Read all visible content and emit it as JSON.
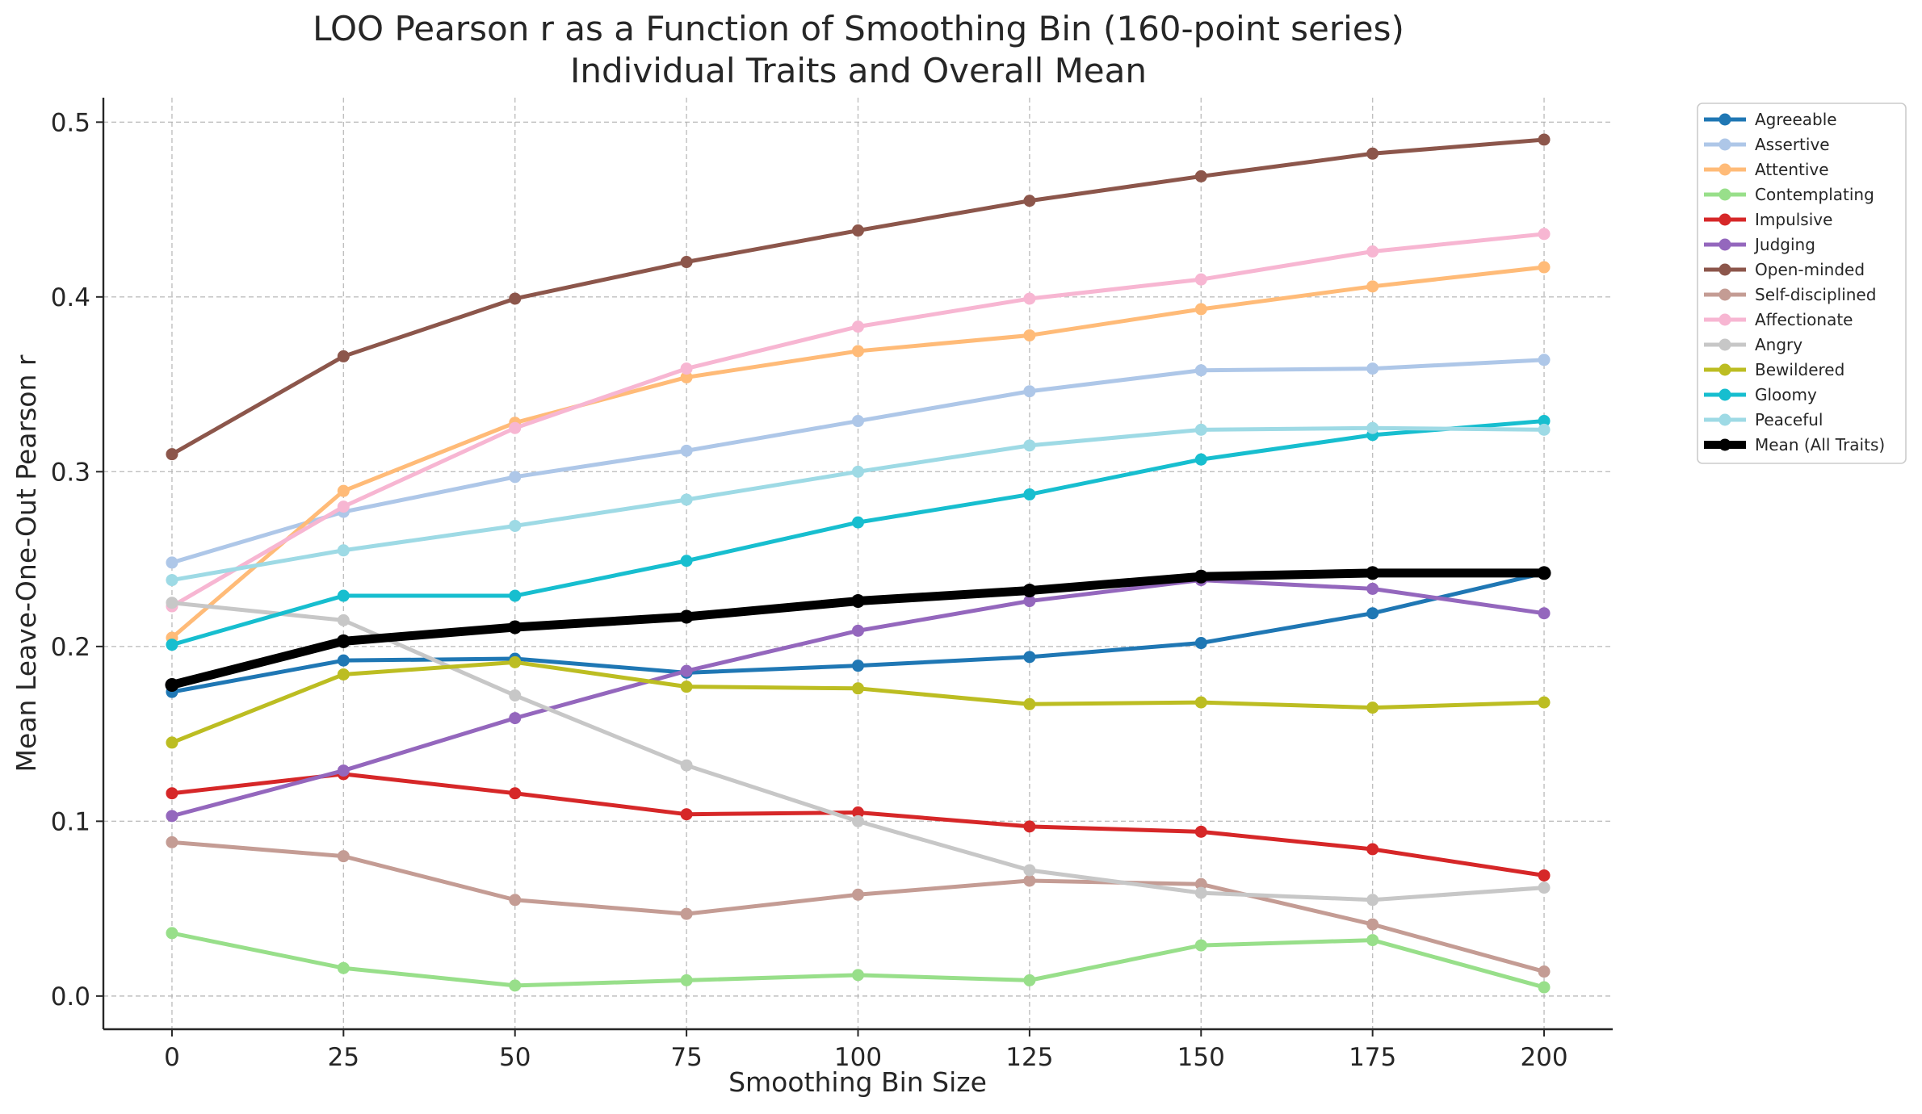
{
  "chart_data": {
    "type": "line",
    "title": "LOO Pearson r as a Function of Smoothing Bin (160-point series)",
    "subtitle": "Individual Traits and Overall Mean",
    "xlabel": "Smoothing Bin Size",
    "ylabel": "Mean Leave-One-Out Pearson r",
    "x": [
      0,
      25,
      50,
      75,
      100,
      125,
      150,
      175,
      200
    ],
    "xlim": [
      -10,
      210
    ],
    "ylim": [
      -0.019,
      0.514
    ],
    "xticks": [
      "0",
      "25",
      "50",
      "75",
      "100",
      "125",
      "150",
      "175",
      "200"
    ],
    "yticks": [
      "0.0",
      "0.1",
      "0.2",
      "0.3",
      "0.4",
      "0.5"
    ],
    "grid": true,
    "legend": "outside-upper-right",
    "series": [
      {
        "name": "Agreeable",
        "color": "#1f77b4",
        "values": [
          0.174,
          0.192,
          0.193,
          0.185,
          0.189,
          0.194,
          0.202,
          0.219,
          0.242
        ]
      },
      {
        "name": "Assertive",
        "color": "#aec7e8",
        "values": [
          0.248,
          0.277,
          0.297,
          0.312,
          0.329,
          0.346,
          0.358,
          0.359,
          0.364
        ]
      },
      {
        "name": "Attentive",
        "color": "#ffbb78",
        "values": [
          0.205,
          0.289,
          0.328,
          0.354,
          0.369,
          0.378,
          0.393,
          0.406,
          0.417
        ]
      },
      {
        "name": "Contemplating",
        "color": "#98df8a",
        "values": [
          0.036,
          0.016,
          0.006,
          0.009,
          0.012,
          0.009,
          0.029,
          0.032,
          0.005
        ]
      },
      {
        "name": "Impulsive",
        "color": "#d62728",
        "values": [
          0.116,
          0.127,
          0.116,
          0.104,
          0.105,
          0.097,
          0.094,
          0.084,
          0.069
        ]
      },
      {
        "name": "Judging",
        "color": "#9467bd",
        "values": [
          0.103,
          0.129,
          0.159,
          0.186,
          0.209,
          0.226,
          0.238,
          0.233,
          0.219
        ]
      },
      {
        "name": "Open-minded",
        "color": "#8c564b",
        "values": [
          0.31,
          0.366,
          0.399,
          0.42,
          0.438,
          0.455,
          0.469,
          0.482,
          0.49
        ]
      },
      {
        "name": "Self-disciplined",
        "color": "#c49c94",
        "values": [
          0.088,
          0.08,
          0.055,
          0.047,
          0.058,
          0.066,
          0.064,
          0.041,
          0.014
        ]
      },
      {
        "name": "Affectionate",
        "color": "#f7b6d2",
        "values": [
          0.223,
          0.28,
          0.325,
          0.359,
          0.383,
          0.399,
          0.41,
          0.426,
          0.436
        ]
      },
      {
        "name": "Angry",
        "color": "#c7c7c7",
        "values": [
          0.225,
          0.215,
          0.172,
          0.132,
          0.1,
          0.072,
          0.059,
          0.055,
          0.062
        ]
      },
      {
        "name": "Bewildered",
        "color": "#bcbd22",
        "values": [
          0.145,
          0.184,
          0.191,
          0.177,
          0.176,
          0.167,
          0.168,
          0.165,
          0.168
        ]
      },
      {
        "name": "Gloomy",
        "color": "#17becf",
        "values": [
          0.201,
          0.229,
          0.229,
          0.249,
          0.271,
          0.287,
          0.307,
          0.321,
          0.329
        ]
      },
      {
        "name": "Peaceful",
        "color": "#9edae5",
        "values": [
          0.238,
          0.255,
          0.269,
          0.284,
          0.3,
          0.315,
          0.324,
          0.325,
          0.324
        ]
      },
      {
        "name": "Mean (All Traits)",
        "color": "#000000",
        "values": [
          0.178,
          0.203,
          0.211,
          0.217,
          0.226,
          0.232,
          0.24,
          0.242,
          0.242
        ]
      }
    ]
  }
}
